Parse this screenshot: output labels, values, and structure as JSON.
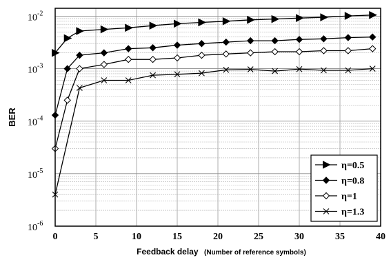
{
  "chart_data": {
    "type": "line",
    "xlabel_main": "Feedback delay",
    "xlabel_sub": "(Number of reference symbols)",
    "ylabel": "BER",
    "xlim": [
      0,
      40
    ],
    "ylim_log10": [
      -6,
      -1.85
    ],
    "y_scale": "log",
    "grid": true,
    "legend_position": "bottom-right",
    "x_ticks": [
      0,
      5,
      10,
      15,
      20,
      25,
      30,
      35,
      40
    ],
    "y_ticks": [
      {
        "base": "10",
        "exp": "-6",
        "value": 1e-06
      },
      {
        "base": "10",
        "exp": "-5",
        "value": 1e-05
      },
      {
        "base": "10",
        "exp": "-4",
        "value": 0.0001
      },
      {
        "base": "10",
        "exp": "-3",
        "value": 0.001
      },
      {
        "base": "10",
        "exp": "-2",
        "value": 0.01
      }
    ],
    "series": [
      {
        "name": "η=0.5",
        "marker": "triangle-right",
        "x": [
          0,
          1.5,
          3,
          6,
          9,
          12,
          15,
          18,
          21,
          24,
          27,
          30,
          33,
          36,
          39
        ],
        "y": [
          0.002,
          0.0038,
          0.0052,
          0.0056,
          0.006,
          0.0066,
          0.0072,
          0.0076,
          0.008,
          0.0085,
          0.0088,
          0.0092,
          0.0095,
          0.0101,
          0.0105
        ]
      },
      {
        "name": "η=0.8",
        "marker": "diamond-filled",
        "x": [
          0,
          1.5,
          3,
          6,
          9,
          12,
          15,
          18,
          21,
          24,
          27,
          30,
          33,
          36,
          39
        ],
        "y": [
          0.00013,
          0.001,
          0.0018,
          0.002,
          0.0024,
          0.0025,
          0.0028,
          0.003,
          0.0032,
          0.0034,
          0.0034,
          0.0036,
          0.0037,
          0.0039,
          0.004
        ]
      },
      {
        "name": "η=1",
        "marker": "diamond-open",
        "x": [
          0,
          1.5,
          3,
          6,
          9,
          12,
          15,
          18,
          21,
          24,
          27,
          30,
          33,
          36,
          39
        ],
        "y": [
          3e-05,
          0.00025,
          0.001,
          0.0012,
          0.0015,
          0.0015,
          0.0016,
          0.0018,
          0.0019,
          0.002,
          0.0021,
          0.0021,
          0.0022,
          0.0022,
          0.0024
        ]
      },
      {
        "name": "η=1.3",
        "marker": "x",
        "x": [
          0,
          3,
          6,
          9,
          12,
          15,
          18,
          21,
          24,
          27,
          30,
          33,
          36,
          39
        ],
        "y": [
          4e-06,
          0.00043,
          0.0006,
          0.0006,
          0.00075,
          0.00078,
          0.00082,
          0.00095,
          0.00097,
          0.0009,
          0.00098,
          0.00093,
          0.00093,
          0.001
        ]
      }
    ]
  }
}
